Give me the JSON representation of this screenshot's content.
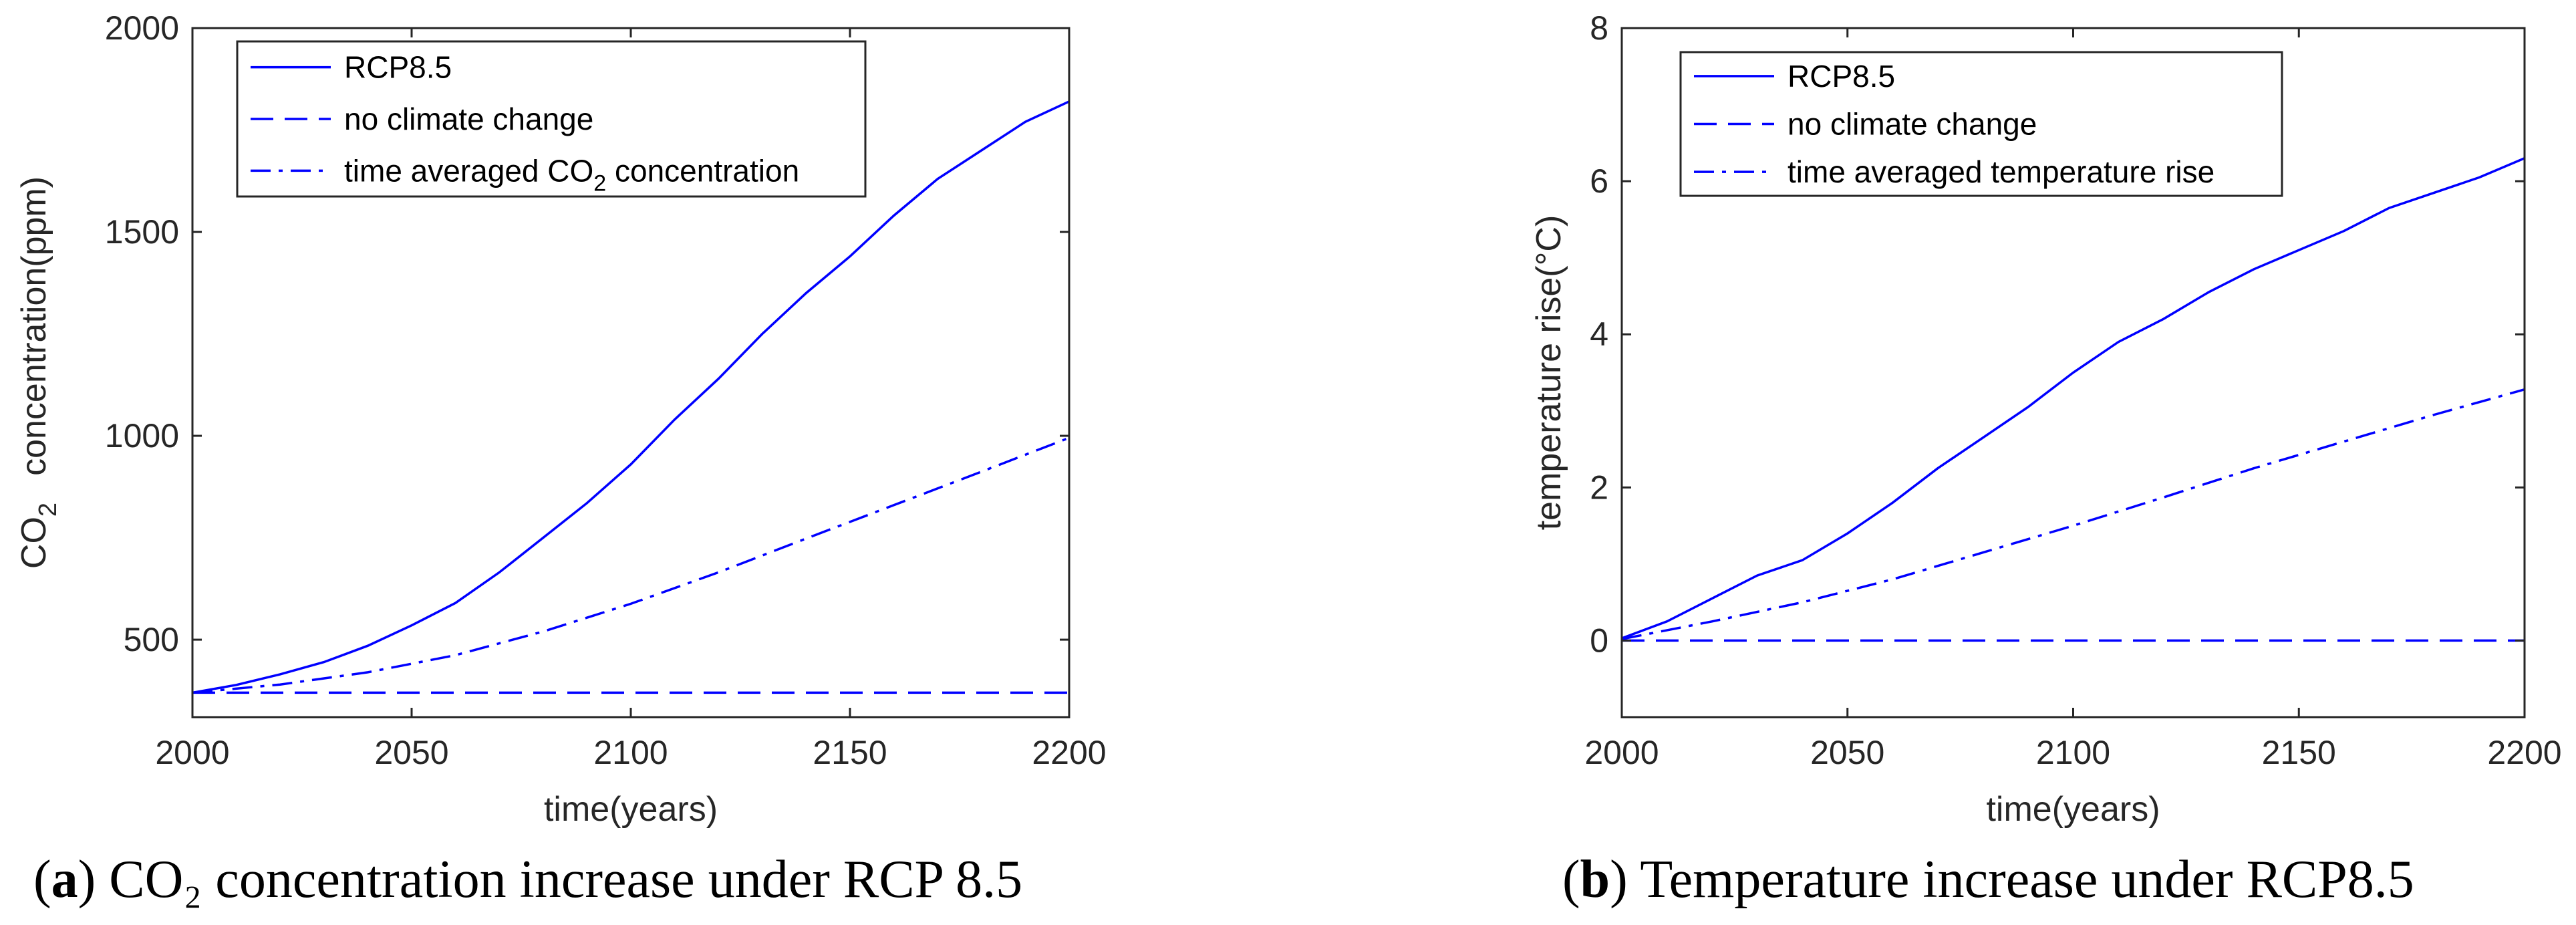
{
  "chart_data": [
    {
      "type": "line",
      "title": "",
      "caption_label": "a",
      "caption_text": "CO₂ concentration increase under RCP 8.5",
      "xlabel": "time(years)",
      "ylabel_main": "CO",
      "ylabel_sub": "2",
      "ylabel_rest": "concentration(ppm)",
      "xlim": [
        2000,
        2200
      ],
      "ylim": [
        310,
        2000
      ],
      "xticks": [
        2000,
        2050,
        2100,
        2150,
        2200
      ],
      "yticks": [
        500,
        1000,
        1500,
        2000
      ],
      "grid": false,
      "legend_position": "top-left",
      "series": [
        {
          "name": "RCP8.5",
          "style": "solid",
          "x": [
            2000,
            2010,
            2020,
            2030,
            2040,
            2050,
            2060,
            2070,
            2080,
            2090,
            2100,
            2110,
            2120,
            2130,
            2140,
            2150,
            2160,
            2170,
            2180,
            2190,
            2200
          ],
          "y": [
            370,
            389,
            415,
            445,
            485,
            535,
            590,
            665,
            750,
            835,
            930,
            1040,
            1140,
            1250,
            1350,
            1440,
            1540,
            1630,
            1700,
            1770,
            1820
          ]
        },
        {
          "name": "no climate change",
          "style": "dashed",
          "x": [
            2000,
            2200
          ],
          "y": [
            370,
            370
          ]
        },
        {
          "name": "time averaged CO",
          "name_sub": "2",
          "name_rest": " concentration",
          "style": "dashdot",
          "x": [
            2000,
            2020,
            2040,
            2060,
            2080,
            2100,
            2120,
            2140,
            2160,
            2180,
            2200
          ],
          "y": [
            370,
            390,
            420,
            462,
            520,
            588,
            665,
            748,
            830,
            912,
            995
          ]
        }
      ]
    },
    {
      "type": "line",
      "title": "",
      "caption_label": "b",
      "caption_text": "Temperature increase under RCP8.5",
      "xlabel": "time(years)",
      "ylabel": "temperature rise(°C)",
      "xlim": [
        2000,
        2200
      ],
      "ylim": [
        -1,
        8
      ],
      "xticks": [
        2000,
        2050,
        2100,
        2150,
        2200
      ],
      "yticks": [
        0,
        2,
        4,
        6,
        8
      ],
      "grid": false,
      "legend_position": "top-left",
      "series": [
        {
          "name": "RCP8.5",
          "style": "solid",
          "x": [
            2000,
            2010,
            2020,
            2030,
            2040,
            2050,
            2060,
            2070,
            2080,
            2090,
            2100,
            2110,
            2120,
            2130,
            2140,
            2150,
            2160,
            2170,
            2180,
            2190,
            2200
          ],
          "y": [
            0.03,
            0.25,
            0.55,
            0.85,
            1.05,
            1.4,
            1.8,
            2.25,
            2.65,
            3.05,
            3.5,
            3.9,
            4.2,
            4.55,
            4.85,
            5.1,
            5.35,
            5.65,
            5.85,
            6.05,
            6.3
          ]
        },
        {
          "name": "no climate change",
          "style": "dashed",
          "x": [
            2000,
            2200
          ],
          "y": [
            0,
            0
          ]
        },
        {
          "name": "time averaged temperature rise",
          "style": "dashdot",
          "x": [
            2000,
            2020,
            2040,
            2060,
            2080,
            2100,
            2120,
            2140,
            2160,
            2180,
            2200
          ],
          "y": [
            0.02,
            0.25,
            0.5,
            0.8,
            1.15,
            1.5,
            1.87,
            2.25,
            2.6,
            2.95,
            3.28
          ]
        }
      ]
    }
  ]
}
